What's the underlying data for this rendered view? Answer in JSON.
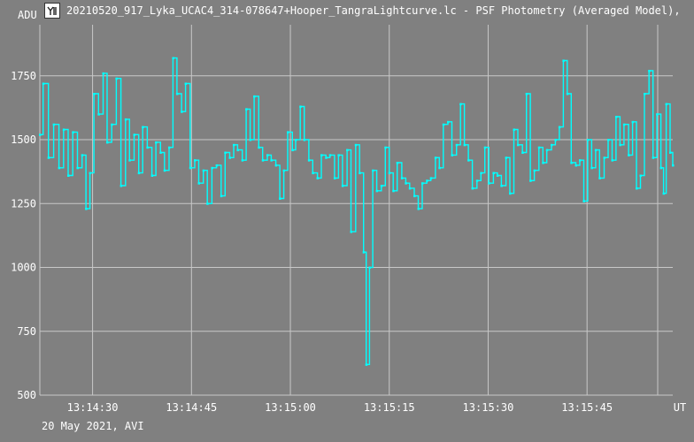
{
  "window": {
    "title": "20210520_917_Lyka_UCAC4_314-078647+Hooper_TangraLightcurve.lc - PSF Photometry (Averaged Model),",
    "icon": "tangra-app-icon"
  },
  "footer": {
    "date_text": "20 May 2021, AVI"
  },
  "colors": {
    "background": "#808080",
    "grid": "#c8c8c8",
    "series": "#00ffff"
  },
  "chart_data": {
    "type": "line",
    "ylabel": "ADU",
    "xunit": "UT",
    "ylim": [
      500,
      1950
    ],
    "y_ticks": [
      500,
      750,
      1000,
      1250,
      1500,
      1750
    ],
    "xlim": [
      "13:14:22",
      "13:15:58"
    ],
    "x_ticks": [
      "13:14:30",
      "13:14:45",
      "13:15:00",
      "13:15:15",
      "13:15:30",
      "13:15:45"
    ],
    "grid": true,
    "series": [
      {
        "color": "#00ffff",
        "points": [
          [
            "13:14:22.0",
            1520
          ],
          [
            "13:14:22.5",
            1720
          ],
          [
            "13:14:23.3",
            1430
          ],
          [
            "13:14:24.1",
            1560
          ],
          [
            "13:14:24.9",
            1390
          ],
          [
            "13:14:25.6",
            1540
          ],
          [
            "13:14:26.3",
            1360
          ],
          [
            "13:14:27.0",
            1530
          ],
          [
            "13:14:27.7",
            1390
          ],
          [
            "13:14:28.4",
            1440
          ],
          [
            "13:14:29.0",
            1230
          ],
          [
            "13:14:29.6",
            1370
          ],
          [
            "13:14:30.2",
            1680
          ],
          [
            "13:14:30.9",
            1600
          ],
          [
            "13:14:31.6",
            1760
          ],
          [
            "13:14:32.2",
            1490
          ],
          [
            "13:14:32.9",
            1560
          ],
          [
            "13:14:33.6",
            1740
          ],
          [
            "13:14:34.3",
            1320
          ],
          [
            "13:14:35.0",
            1580
          ],
          [
            "13:14:35.6",
            1420
          ],
          [
            "13:14:36.3",
            1520
          ],
          [
            "13:14:37.0",
            1370
          ],
          [
            "13:14:37.6",
            1550
          ],
          [
            "13:14:38.3",
            1470
          ],
          [
            "13:14:39.0",
            1360
          ],
          [
            "13:14:39.6",
            1490
          ],
          [
            "13:14:40.3",
            1450
          ],
          [
            "13:14:40.9",
            1380
          ],
          [
            "13:14:41.6",
            1470
          ],
          [
            "13:14:42.2",
            1820
          ],
          [
            "13:14:42.8",
            1680
          ],
          [
            "13:14:43.5",
            1610
          ],
          [
            "13:14:44.1",
            1720
          ],
          [
            "13:14:44.8",
            1390
          ],
          [
            "13:14:45.5",
            1420
          ],
          [
            "13:14:46.1",
            1330
          ],
          [
            "13:14:46.8",
            1380
          ],
          [
            "13:14:47.4",
            1250
          ],
          [
            "13:14:48.1",
            1390
          ],
          [
            "13:14:48.8",
            1400
          ],
          [
            "13:14:49.5",
            1280
          ],
          [
            "13:14:50.1",
            1450
          ],
          [
            "13:14:50.8",
            1430
          ],
          [
            "13:14:51.4",
            1480
          ],
          [
            "13:14:52.0",
            1460
          ],
          [
            "13:14:52.7",
            1420
          ],
          [
            "13:14:53.3",
            1620
          ],
          [
            "13:14:53.9",
            1500
          ],
          [
            "13:14:54.5",
            1670
          ],
          [
            "13:14:55.2",
            1470
          ],
          [
            "13:14:55.8",
            1420
          ],
          [
            "13:14:56.5",
            1440
          ],
          [
            "13:14:57.1",
            1420
          ],
          [
            "13:14:57.8",
            1400
          ],
          [
            "13:14:58.4",
            1270
          ],
          [
            "13:14:59.0",
            1380
          ],
          [
            "13:14:59.6",
            1530
          ],
          [
            "13:15:00.3",
            1460
          ],
          [
            "13:15:00.8",
            1500
          ],
          [
            "13:15:01.5",
            1630
          ],
          [
            "13:15:02.1",
            1500
          ],
          [
            "13:15:02.8",
            1420
          ],
          [
            "13:15:03.4",
            1370
          ],
          [
            "13:15:04.1",
            1350
          ],
          [
            "13:15:04.7",
            1440
          ],
          [
            "13:15:05.4",
            1430
          ],
          [
            "13:15:06.0",
            1440
          ],
          [
            "13:15:06.7",
            1350
          ],
          [
            "13:15:07.3",
            1440
          ],
          [
            "13:15:07.9",
            1320
          ],
          [
            "13:15:08.6",
            1460
          ],
          [
            "13:15:09.2",
            1140
          ],
          [
            "13:15:09.9",
            1480
          ],
          [
            "13:15:10.5",
            1370
          ],
          [
            "13:15:11.1",
            1060
          ],
          [
            "13:15:11.5",
            620
          ],
          [
            "13:15:12.0",
            1000
          ],
          [
            "13:15:12.5",
            1380
          ],
          [
            "13:15:13.1",
            1300
          ],
          [
            "13:15:13.8",
            1320
          ],
          [
            "13:15:14.4",
            1470
          ],
          [
            "13:15:15.0",
            1370
          ],
          [
            "13:15:15.6",
            1300
          ],
          [
            "13:15:16.2",
            1410
          ],
          [
            "13:15:16.9",
            1350
          ],
          [
            "13:15:17.5",
            1330
          ],
          [
            "13:15:18.1",
            1310
          ],
          [
            "13:15:18.8",
            1280
          ],
          [
            "13:15:19.4",
            1230
          ],
          [
            "13:15:20.0",
            1330
          ],
          [
            "13:15:20.7",
            1340
          ],
          [
            "13:15:21.3",
            1350
          ],
          [
            "13:15:22.0",
            1430
          ],
          [
            "13:15:22.6",
            1390
          ],
          [
            "13:15:23.2",
            1560
          ],
          [
            "13:15:23.9",
            1570
          ],
          [
            "13:15:24.5",
            1440
          ],
          [
            "13:15:25.2",
            1480
          ],
          [
            "13:15:25.8",
            1640
          ],
          [
            "13:15:26.4",
            1480
          ],
          [
            "13:15:27.0",
            1420
          ],
          [
            "13:15:27.6",
            1310
          ],
          [
            "13:15:28.3",
            1340
          ],
          [
            "13:15:28.9",
            1370
          ],
          [
            "13:15:29.5",
            1470
          ],
          [
            "13:15:30.1",
            1330
          ],
          [
            "13:15:30.8",
            1370
          ],
          [
            "13:15:31.4",
            1360
          ],
          [
            "13:15:32.0",
            1320
          ],
          [
            "13:15:32.7",
            1430
          ],
          [
            "13:15:33.3",
            1290
          ],
          [
            "13:15:33.9",
            1540
          ],
          [
            "13:15:34.5",
            1480
          ],
          [
            "13:15:35.2",
            1450
          ],
          [
            "13:15:35.8",
            1680
          ],
          [
            "13:15:36.4",
            1340
          ],
          [
            "13:15:37.0",
            1380
          ],
          [
            "13:15:37.7",
            1470
          ],
          [
            "13:15:38.3",
            1410
          ],
          [
            "13:15:38.9",
            1460
          ],
          [
            "13:15:39.6",
            1480
          ],
          [
            "13:15:40.2",
            1500
          ],
          [
            "13:15:40.8",
            1550
          ],
          [
            "13:15:41.4",
            1810
          ],
          [
            "13:15:42.0",
            1680
          ],
          [
            "13:15:42.6",
            1410
          ],
          [
            "13:15:43.3",
            1400
          ],
          [
            "13:15:43.9",
            1420
          ],
          [
            "13:15:44.5",
            1260
          ],
          [
            "13:15:45.1",
            1500
          ],
          [
            "13:15:45.7",
            1390
          ],
          [
            "13:15:46.3",
            1460
          ],
          [
            "13:15:46.9",
            1350
          ],
          [
            "13:15:47.6",
            1430
          ],
          [
            "13:15:48.2",
            1500
          ],
          [
            "13:15:48.8",
            1420
          ],
          [
            "13:15:49.4",
            1590
          ],
          [
            "13:15:50.0",
            1480
          ],
          [
            "13:15:50.6",
            1560
          ],
          [
            "13:15:51.3",
            1440
          ],
          [
            "13:15:51.9",
            1570
          ],
          [
            "13:15:52.5",
            1310
          ],
          [
            "13:15:53.1",
            1360
          ],
          [
            "13:15:53.7",
            1680
          ],
          [
            "13:15:54.4",
            1770
          ],
          [
            "13:15:55.0",
            1430
          ],
          [
            "13:15:55.6",
            1600
          ],
          [
            "13:15:56.2",
            1390
          ],
          [
            "13:15:56.6",
            1290
          ],
          [
            "13:15:57.0",
            1640
          ],
          [
            "13:15:57.6",
            1450
          ],
          [
            "13:15:58.0",
            1400
          ]
        ]
      }
    ]
  }
}
